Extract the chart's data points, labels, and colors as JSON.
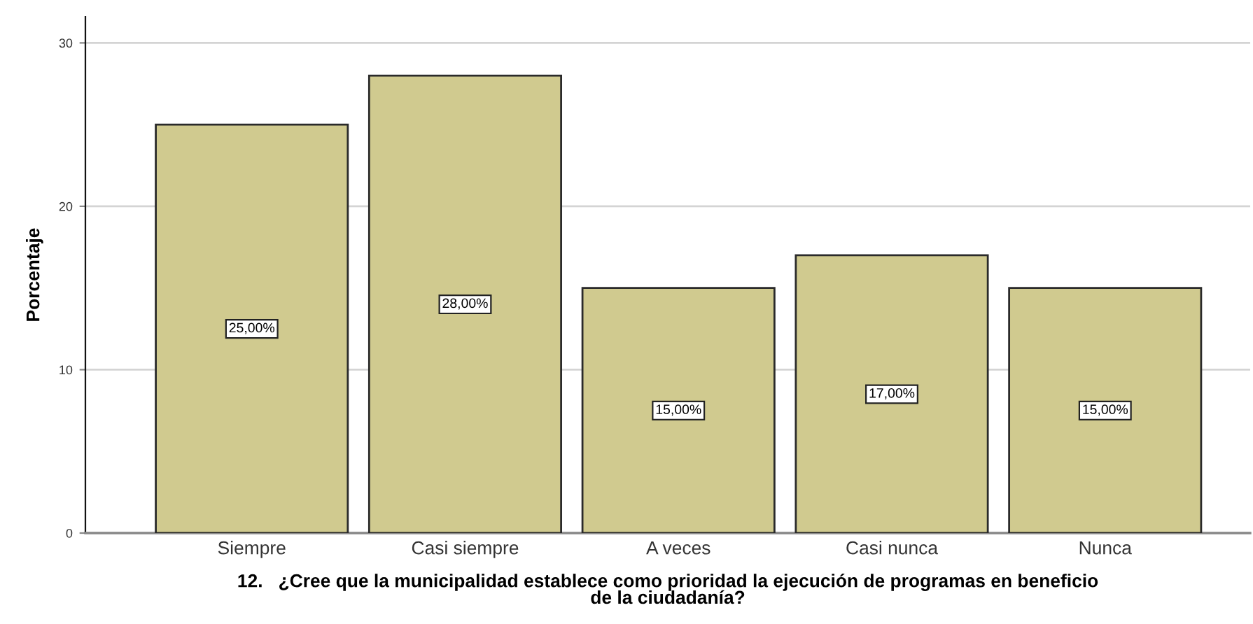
{
  "chart_data": {
    "type": "bar",
    "xlabel": "12.   ¿Cree que la municipalidad establece como prioridad la ejecución de programas en beneficio\nde la ciudadanía?",
    "ylabel": "Porcentaje",
    "categories": [
      "Siempre",
      "Casi siempre",
      "A veces",
      "Casi nunca",
      "Nunca"
    ],
    "values": [
      25,
      28,
      15,
      17,
      15
    ],
    "value_labels": [
      "25,00%",
      "28,00%",
      "15,00%",
      "17,00%",
      "15,00%"
    ],
    "color": "#d0ca8f",
    "ylim": [
      0,
      31.6
    ],
    "yticks": [
      0,
      10,
      20,
      30
    ],
    "grid": "y"
  }
}
